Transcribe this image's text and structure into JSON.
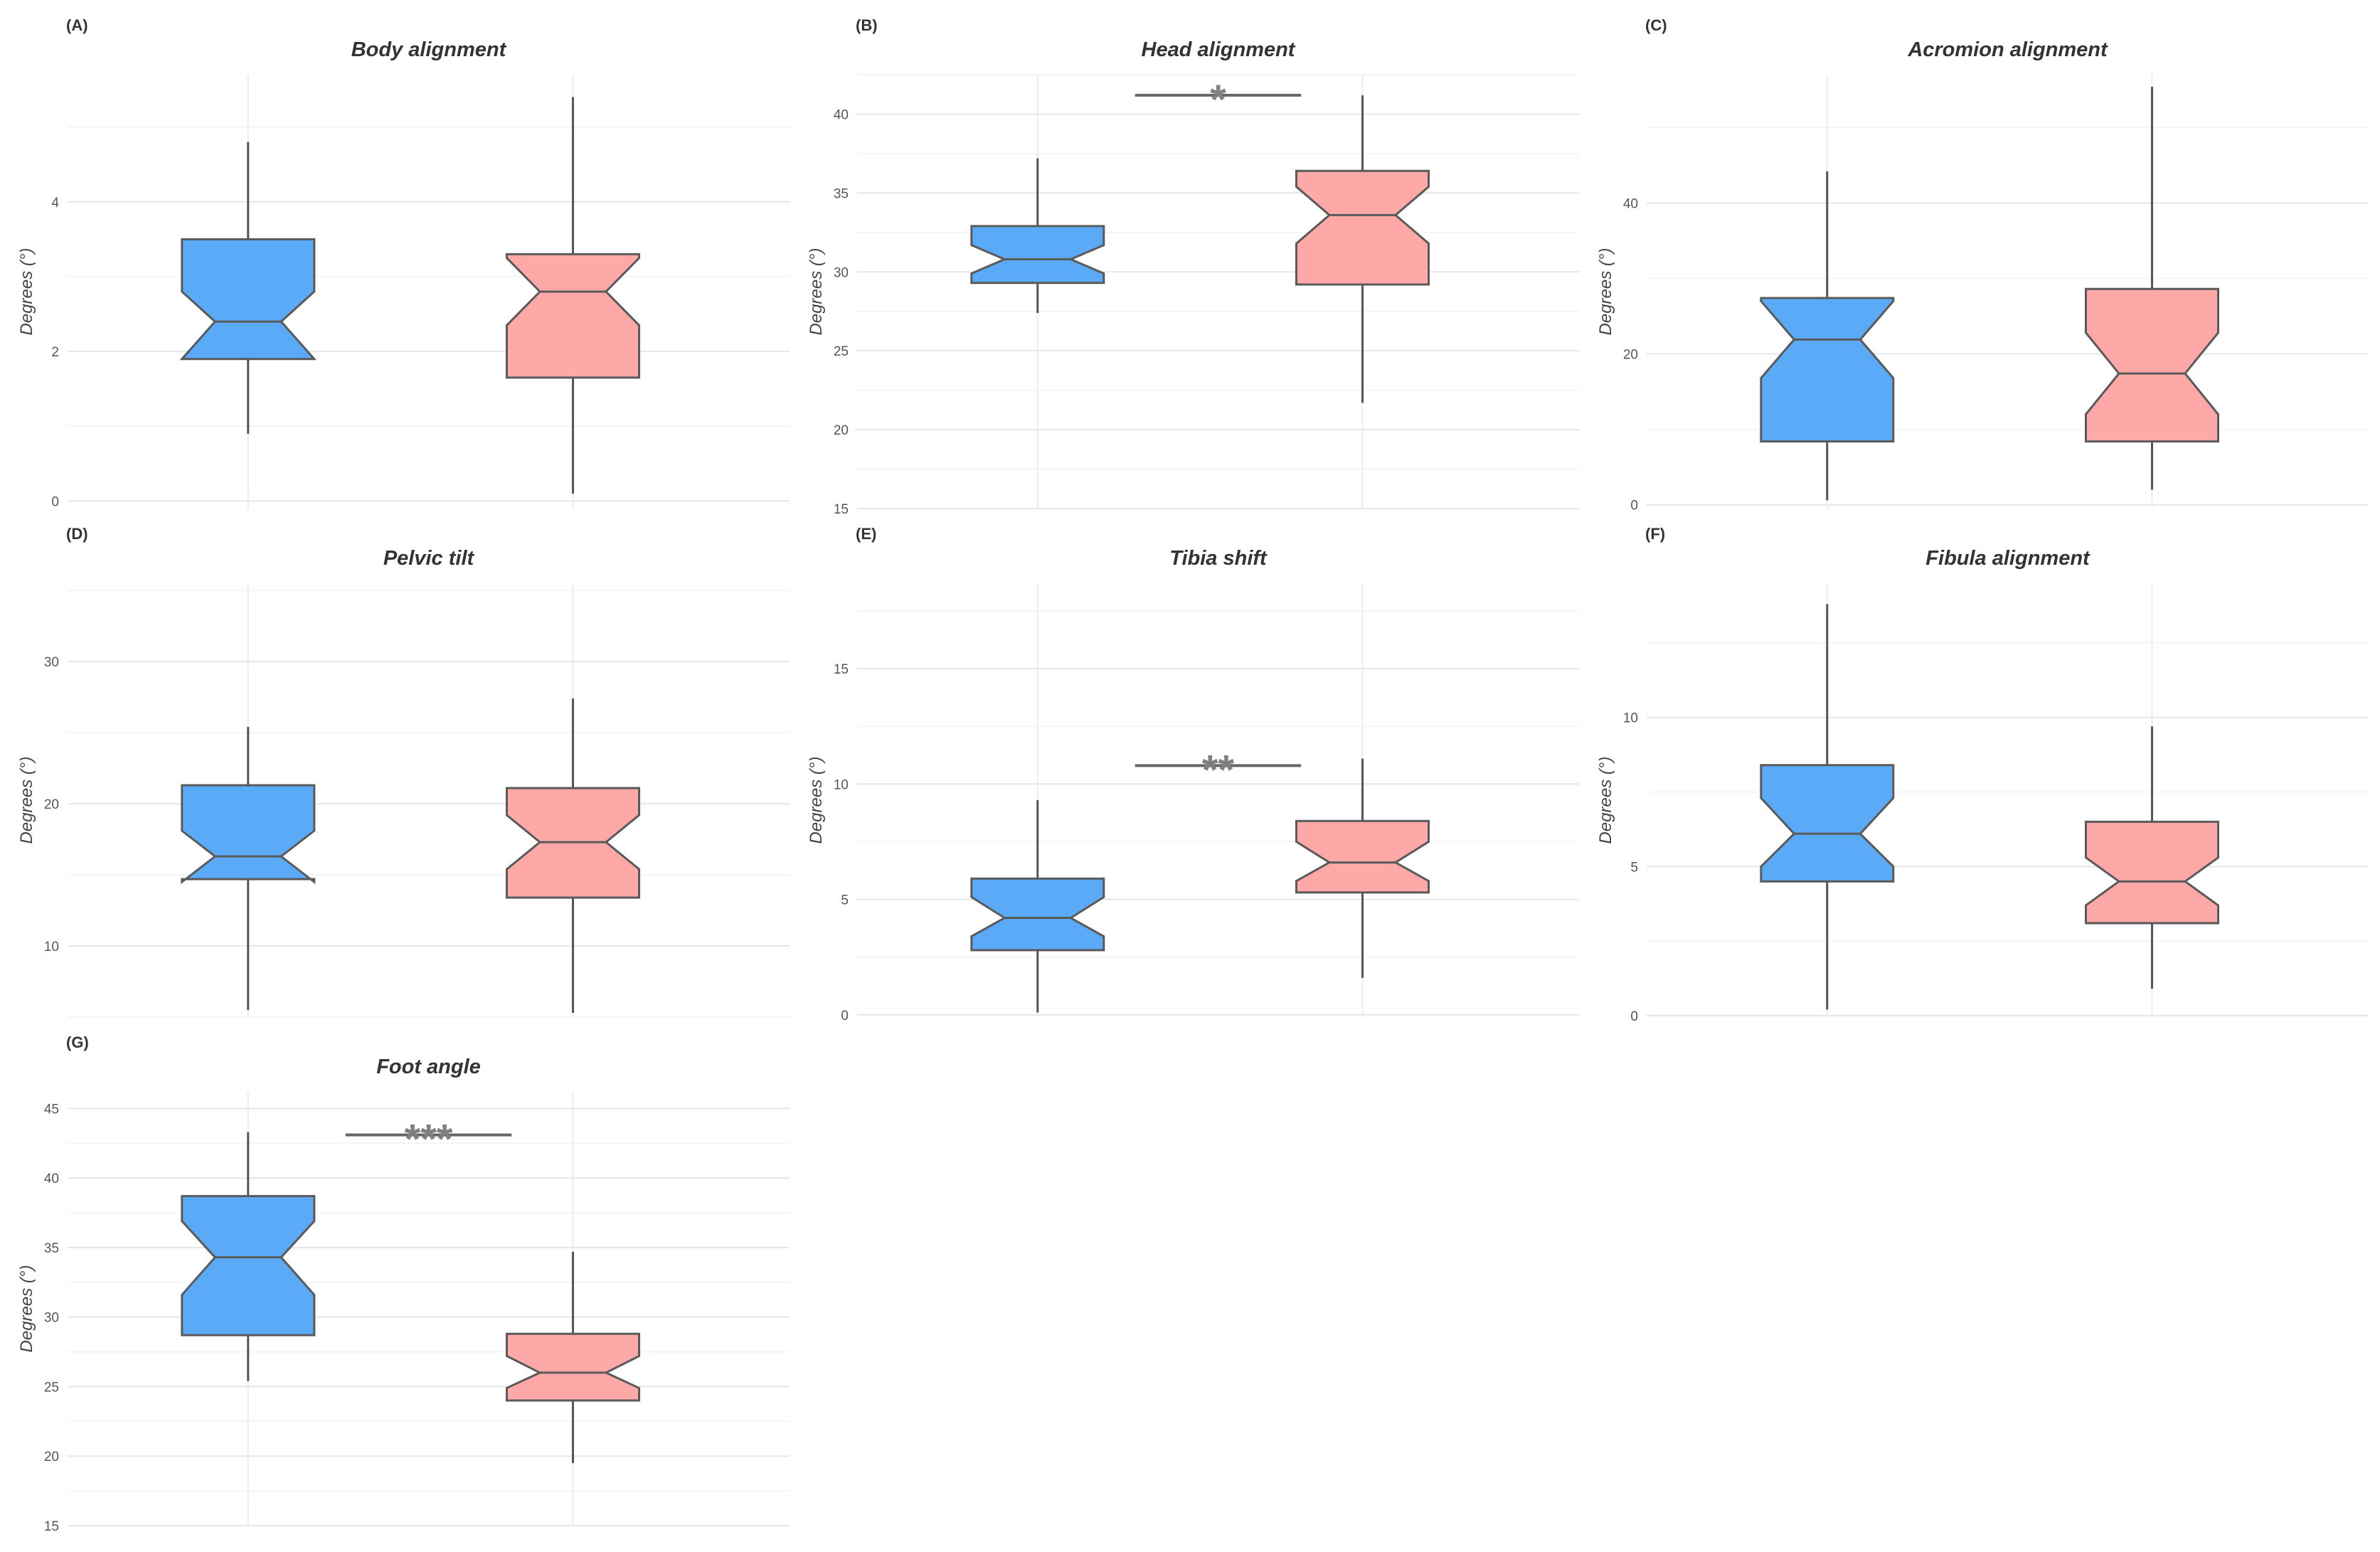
{
  "chart_data": [
    {
      "type": "boxplot",
      "notched": true,
      "panel_label": "(A)",
      "title": "Body alignment",
      "ylabel": "Degrees (°)",
      "ylim": [
        -0.1,
        5.7
      ],
      "yticks": [
        0,
        2,
        4
      ],
      "grid": true,
      "boxes": [
        {
          "group": 1,
          "color": "#5aaaf7",
          "whisker_low": 0.9,
          "q1": 1.9,
          "median": 2.4,
          "q3": 3.5,
          "whisker_high": 4.8,
          "notch_low": 1.9,
          "notch_high": 2.8
        },
        {
          "group": 2,
          "color": "#ffa8a8",
          "whisker_low": 0.1,
          "q1": 1.65,
          "median": 2.8,
          "q3": 3.3,
          "whisker_high": 5.4,
          "notch_low": 2.35,
          "notch_high": 3.25
        }
      ],
      "significance": null
    },
    {
      "type": "boxplot",
      "notched": true,
      "panel_label": "(B)",
      "title": "Head alignment",
      "ylabel": "Degrees (°)",
      "ylim": [
        15,
        42.5
      ],
      "yticks": [
        15,
        20,
        25,
        30,
        35,
        40
      ],
      "grid": true,
      "boxes": [
        {
          "group": 1,
          "color": "#5aaaf7",
          "whisker_low": 27.4,
          "q1": 29.3,
          "median": 30.8,
          "q3": 32.9,
          "whisker_high": 37.2,
          "notch_low": 29.9,
          "notch_high": 31.7
        },
        {
          "group": 2,
          "color": "#ffa8a8",
          "whisker_low": 21.7,
          "q1": 29.2,
          "median": 33.6,
          "q3": 36.4,
          "whisker_high": 41.2,
          "notch_low": 31.8,
          "notch_high": 35.4
        }
      ],
      "significance": {
        "label": "*",
        "y": 41.2
      }
    },
    {
      "type": "boxplot",
      "notched": true,
      "panel_label": "(C)",
      "title": "Acromion alignment",
      "ylabel": "Degrees (°)",
      "ylim": [
        -0.5,
        57
      ],
      "yticks": [
        0,
        20,
        40
      ],
      "grid": true,
      "boxes": [
        {
          "group": 1,
          "color": "#5aaaf7",
          "whisker_low": 0.6,
          "q1": 8.4,
          "median": 21.9,
          "q3": 27.4,
          "whisker_high": 44.2,
          "notch_low": 16.8,
          "notch_high": 27.0
        },
        {
          "group": 2,
          "color": "#ffa8a8",
          "whisker_low": 2.0,
          "q1": 8.4,
          "median": 17.4,
          "q3": 28.6,
          "whisker_high": 55.4,
          "notch_low": 12.0,
          "notch_high": 22.8
        }
      ],
      "significance": null
    },
    {
      "type": "boxplot",
      "notched": true,
      "panel_label": "(D)",
      "title": "Pelvic tilt",
      "ylabel": "Degrees (°)",
      "ylim": [
        5,
        35.5
      ],
      "yticks": [
        10,
        20,
        30
      ],
      "grid": true,
      "boxes": [
        {
          "group": 1,
          "color": "#5aaaf7",
          "whisker_low": 5.5,
          "q1": 14.7,
          "median": 16.3,
          "q3": 21.3,
          "whisker_high": 25.4,
          "notch_low": 14.5,
          "notch_high": 18.1
        },
        {
          "group": 2,
          "color": "#ffa8a8",
          "whisker_low": 5.3,
          "q1": 13.4,
          "median": 17.3,
          "q3": 21.1,
          "whisker_high": 27.4,
          "notch_low": 15.4,
          "notch_high": 19.2
        }
      ],
      "significance": null
    },
    {
      "type": "boxplot",
      "notched": true,
      "panel_label": "(E)",
      "title": "Tibia shift",
      "ylabel": "Degrees (°)",
      "ylim": [
        -0.1,
        18.7
      ],
      "yticks": [
        0,
        5,
        10,
        15
      ],
      "grid": true,
      "boxes": [
        {
          "group": 1,
          "color": "#5aaaf7",
          "whisker_low": 0.1,
          "q1": 2.8,
          "median": 4.2,
          "q3": 5.9,
          "whisker_high": 9.3,
          "notch_low": 3.4,
          "notch_high": 5.1
        },
        {
          "group": 2,
          "color": "#ffa8a8",
          "whisker_low": 1.6,
          "q1": 5.3,
          "median": 6.6,
          "q3": 8.4,
          "whisker_high": 11.1,
          "notch_low": 5.8,
          "notch_high": 7.5
        }
      ],
      "significance": {
        "label": "**",
        "y": 10.8
      }
    },
    {
      "type": "boxplot",
      "notched": true,
      "panel_label": "(F)",
      "title": "Fibula alignment",
      "ylabel": "Degrees (°)",
      "ylim": [
        -0.05,
        14.5
      ],
      "yticks": [
        0,
        5,
        10
      ],
      "grid": true,
      "boxes": [
        {
          "group": 1,
          "color": "#5aaaf7",
          "whisker_low": 0.2,
          "q1": 4.5,
          "median": 6.1,
          "q3": 8.4,
          "whisker_high": 13.8,
          "notch_low": 5.0,
          "notch_high": 7.3
        },
        {
          "group": 2,
          "color": "#ffa8a8",
          "whisker_low": 0.9,
          "q1": 3.1,
          "median": 4.5,
          "q3": 6.5,
          "whisker_high": 9.7,
          "notch_low": 3.7,
          "notch_high": 5.3
        }
      ],
      "significance": null
    },
    {
      "type": "boxplot",
      "notched": true,
      "panel_label": "(G)",
      "title": "Foot angle",
      "ylabel": "Degrees (°)",
      "ylim": [
        15,
        46.2
      ],
      "yticks": [
        15,
        20,
        25,
        30,
        35,
        40,
        45
      ],
      "grid": true,
      "boxes": [
        {
          "group": 1,
          "color": "#5aaaf7",
          "whisker_low": 25.4,
          "q1": 28.7,
          "median": 34.3,
          "q3": 38.7,
          "whisker_high": 43.3,
          "notch_low": 31.6,
          "notch_high": 36.9
        },
        {
          "group": 2,
          "color": "#ffa8a8",
          "whisker_low": 19.5,
          "q1": 24.0,
          "median": 26.0,
          "q3": 28.8,
          "whisker_high": 34.7,
          "notch_low": 24.9,
          "notch_high": 27.2
        }
      ],
      "significance": {
        "label": "***",
        "y": 43.1
      }
    }
  ]
}
